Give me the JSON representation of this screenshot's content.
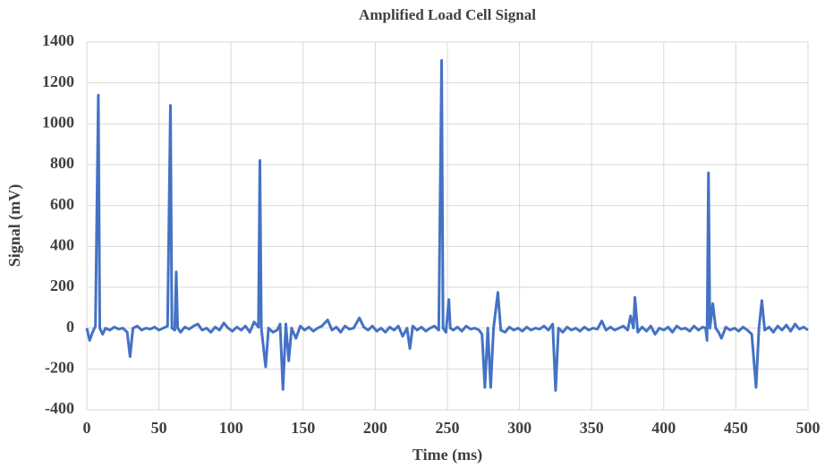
{
  "chart_data": {
    "type": "line",
    "title": "Amplified Load Cell Signal",
    "x_label": "Time (ms)",
    "y_label": "Signal (mV)",
    "x": [
      0,
      2,
      4,
      6,
      8,
      9,
      11,
      13,
      16,
      19,
      22,
      25,
      28,
      30,
      32,
      35,
      38,
      41,
      44,
      47,
      50,
      53,
      56,
      58,
      59,
      61,
      62,
      63,
      65,
      68,
      71,
      74,
      77,
      80,
      83,
      86,
      89,
      92,
      95,
      98,
      101,
      104,
      107,
      110,
      113,
      116,
      119,
      120,
      121,
      124,
      126,
      129,
      132,
      134,
      136,
      138,
      140,
      142,
      145,
      148,
      151,
      154,
      157,
      160,
      163,
      167,
      170,
      173,
      176,
      179,
      182,
      185,
      189,
      192,
      195,
      198,
      201,
      204,
      207,
      210,
      213,
      216,
      219,
      222,
      224,
      226,
      229,
      232,
      235,
      238,
      241,
      244,
      246,
      247,
      249,
      251,
      252,
      254,
      257,
      260,
      263,
      266,
      269,
      272,
      274,
      276,
      278,
      280,
      282,
      285,
      287,
      290,
      293,
      296,
      299,
      302,
      305,
      308,
      311,
      314,
      317,
      320,
      323,
      325,
      327,
      330,
      333,
      336,
      339,
      342,
      345,
      348,
      351,
      354,
      357,
      360,
      363,
      366,
      369,
      372,
      375,
      377,
      379,
      380,
      382,
      385,
      388,
      391,
      394,
      397,
      400,
      403,
      406,
      409,
      412,
      415,
      418,
      421,
      424,
      427,
      429,
      430,
      431,
      432,
      434,
      436,
      438,
      440,
      443,
      446,
      449,
      452,
      455,
      458,
      461,
      464,
      466,
      468,
      470,
      473,
      476,
      479,
      482,
      485,
      488,
      491,
      494,
      497,
      500
    ],
    "series": [
      {
        "name": "Signal",
        "color": "#4472c4",
        "values": [
          0,
          -60,
          -20,
          10,
          1140,
          0,
          -30,
          0,
          -10,
          5,
          -5,
          0,
          -20,
          -140,
          0,
          10,
          -10,
          0,
          -5,
          5,
          -10,
          0,
          10,
          1090,
          0,
          -10,
          275,
          0,
          -20,
          5,
          -5,
          10,
          20,
          -10,
          0,
          -20,
          5,
          -10,
          25,
          0,
          -15,
          5,
          -10,
          10,
          -20,
          30,
          5,
          820,
          0,
          -190,
          0,
          -20,
          -10,
          20,
          -300,
          20,
          -160,
          0,
          -50,
          10,
          -10,
          5,
          -15,
          0,
          10,
          40,
          -10,
          5,
          -20,
          10,
          -5,
          0,
          50,
          5,
          -10,
          10,
          -15,
          0,
          -20,
          5,
          -10,
          10,
          -40,
          0,
          -100,
          10,
          -10,
          5,
          -15,
          0,
          10,
          -10,
          1310,
          0,
          -20,
          140,
          0,
          -10,
          5,
          -15,
          10,
          -5,
          0,
          -10,
          -30,
          -290,
          0,
          -290,
          0,
          175,
          -10,
          -20,
          5,
          -10,
          0,
          -15,
          5,
          -10,
          0,
          -5,
          10,
          -10,
          20,
          -305,
          0,
          -20,
          5,
          -10,
          0,
          -15,
          5,
          -10,
          0,
          -5,
          35,
          -10,
          5,
          -10,
          0,
          10,
          -10,
          60,
          0,
          150,
          -20,
          5,
          -15,
          10,
          -30,
          0,
          -10,
          5,
          -20,
          10,
          -5,
          0,
          -15,
          10,
          -10,
          5,
          0,
          -60,
          760,
          0,
          120,
          0,
          -20,
          -50,
          5,
          -10,
          0,
          -15,
          5,
          -10,
          -30,
          -290,
          0,
          135,
          -10,
          5,
          -20,
          10,
          -10,
          15,
          -15,
          20,
          -5,
          5,
          -10
        ]
      }
    ],
    "xlim": [
      0,
      500
    ],
    "xticks": [
      0,
      50,
      100,
      150,
      200,
      250,
      300,
      350,
      400,
      450,
      500
    ],
    "ylim": [
      -400,
      1400
    ],
    "yticks": [
      -400,
      -200,
      0,
      200,
      400,
      600,
      800,
      1000,
      1200,
      1400
    ],
    "grid": true
  }
}
